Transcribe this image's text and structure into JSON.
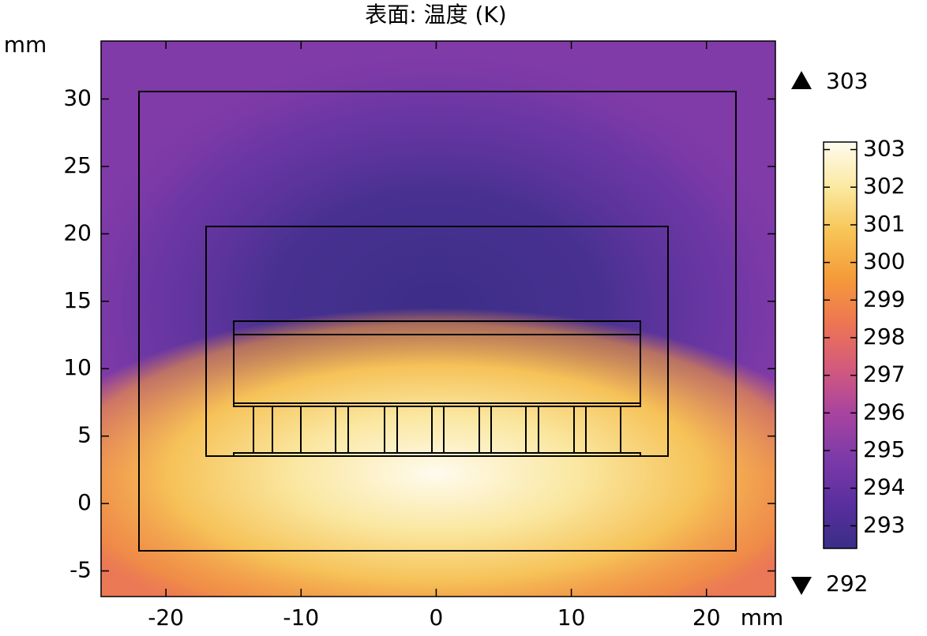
{
  "chart_data": {
    "type": "surface",
    "title": "表面: 温度 (K)",
    "x_unit": "mm",
    "y_unit": "mm",
    "xlim": [
      -24.8,
      25.1
    ],
    "ylim": [
      -6.9,
      34.3
    ],
    "xticks": [
      -20,
      -10,
      0,
      10,
      20
    ],
    "yticks": [
      -5,
      0,
      5,
      10,
      15,
      20,
      25,
      30
    ],
    "colorbar": {
      "clim": [
        292.4,
        303.2
      ],
      "ticks": [
        293,
        294,
        295,
        296,
        297,
        298,
        299,
        300,
        301,
        302,
        303
      ],
      "colors": [
        "#3a2d86",
        "#5a2f9e",
        "#7d3aa8",
        "#a8449f",
        "#d45a7c",
        "#ee7652",
        "#f59b3a",
        "#f7c455",
        "#fbe9a0",
        "#fffbef"
      ]
    },
    "max": 303,
    "min": 292
  }
}
